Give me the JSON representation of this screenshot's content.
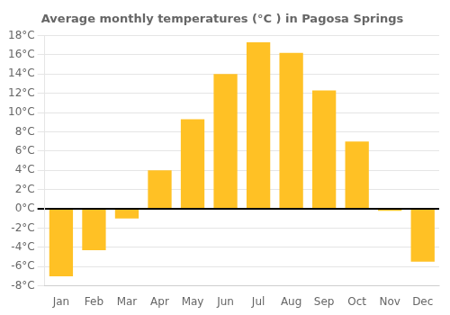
{
  "chart_data": {
    "type": "bar",
    "title": "Average monthly temperatures (°C ) in Pagosa Springs",
    "categories": [
      "Jan",
      "Feb",
      "Mar",
      "Apr",
      "May",
      "Jun",
      "Jul",
      "Aug",
      "Sep",
      "Oct",
      "Nov",
      "Dec"
    ],
    "values": [
      -7,
      -4.3,
      -1,
      4,
      9.3,
      14,
      17.3,
      16.2,
      12.3,
      7,
      -0.2,
      -5.5
    ],
    "color": "#FFC125",
    "ylim": [
      -8,
      18
    ],
    "yticks": [
      {
        "value": -8,
        "label": "-8°C"
      },
      {
        "value": -6,
        "label": "-6°C"
      },
      {
        "value": -4,
        "label": "-4°C"
      },
      {
        "value": -2,
        "label": "-2°C"
      },
      {
        "value": 0,
        "label": "0°C"
      },
      {
        "value": 2,
        "label": "2°C"
      },
      {
        "value": 4,
        "label": "4°C"
      },
      {
        "value": 6,
        "label": "6°C"
      },
      {
        "value": 8,
        "label": "8°C"
      },
      {
        "value": 10,
        "label": "10°C"
      },
      {
        "value": 12,
        "label": "12°C"
      },
      {
        "value": 14,
        "label": "14°C"
      },
      {
        "value": 16,
        "label": "16°C"
      },
      {
        "value": 18,
        "label": "18°C"
      }
    ],
    "grid": true
  }
}
